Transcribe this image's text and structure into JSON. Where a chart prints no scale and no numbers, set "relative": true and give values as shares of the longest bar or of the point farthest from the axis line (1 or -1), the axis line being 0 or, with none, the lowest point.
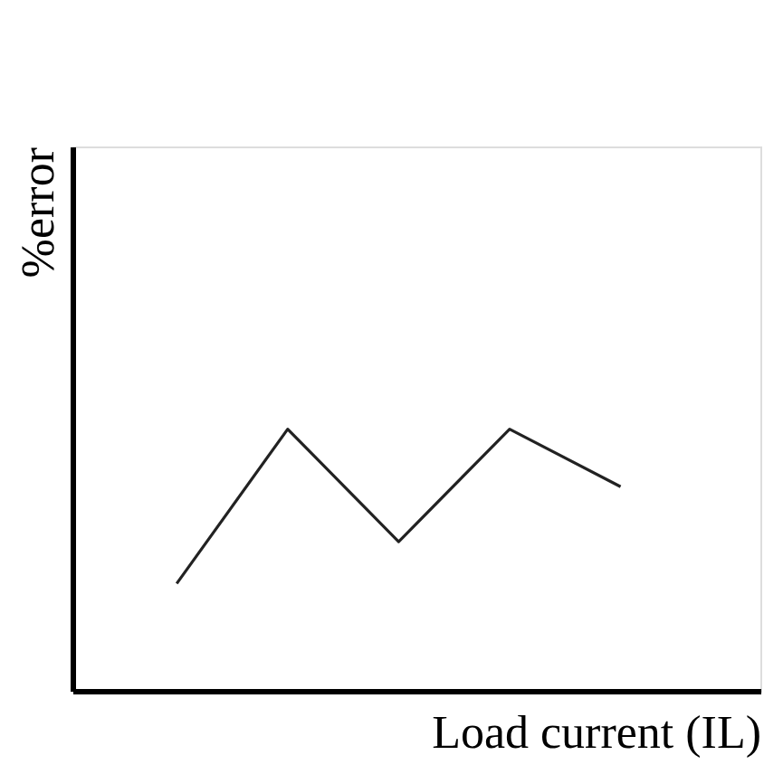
{
  "chart_data": {
    "type": "line",
    "relative": true,
    "xlabel": "Load current  (IL)",
    "ylabel": "%error",
    "categories": [
      null,
      null,
      null,
      null,
      null
    ],
    "series": [
      {
        "color": "#222222",
        "values": [
          0.41,
          1,
          0.57,
          1,
          0.78
        ]
      }
    ],
    "marker": "none",
    "line_style": "solid",
    "grid": false,
    "tick_labels": false
  }
}
